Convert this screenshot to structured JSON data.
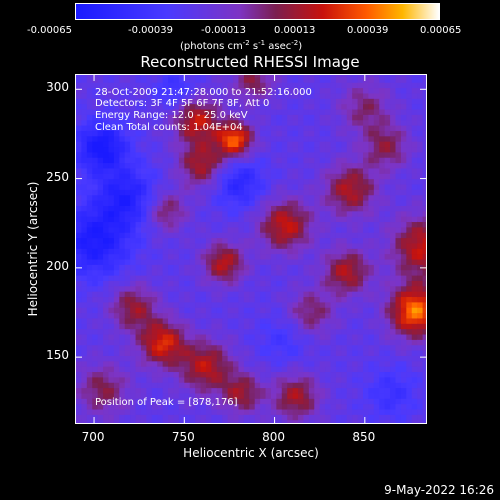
{
  "colorbar": {
    "ticks": [
      "-0.00065",
      "-0.00039",
      "-0.00013",
      "0.00013",
      "0.00039",
      "0.00065"
    ],
    "units_text": "(photons cm",
    "units_exp1": "-2",
    "units_mid": " s",
    "units_exp2": "-1",
    "units_mid2": " asec",
    "units_exp3": "-2",
    "units_end": ")"
  },
  "chart_data": {
    "type": "heatmap",
    "title": "Reconstructed RHESSI Image",
    "xlabel": "Heliocentric X (arcsec)",
    "ylabel": "Heliocentric Y (arcsec)",
    "xlim": [
      690,
      885
    ],
    "ylim": [
      112,
      308
    ],
    "xticks": [
      700,
      750,
      800,
      850
    ],
    "yticks": [
      150,
      200,
      250,
      300
    ],
    "clim": [
      -0.00065,
      0.00065
    ],
    "annotations": [
      "28-Oct-2009 21:47:28.000 to 21:52:16.000",
      "Detectors: 3F 4F 5F 6F 7F 8F, Att 0",
      "Energy Range: 12.0 - 25.0 keV",
      "Clean     Total counts: 1.04E+04"
    ],
    "peak_label": "Position of Peak = [878,176]",
    "peak": [
      878,
      176
    ],
    "hot_spots": [
      {
        "x": 878,
        "y": 176,
        "v": 0.00065,
        "r": 10
      },
      {
        "x": 882,
        "y": 212,
        "v": 0.00045,
        "r": 12
      },
      {
        "x": 738,
        "y": 158,
        "v": 0.0005,
        "r": 9
      },
      {
        "x": 762,
        "y": 145,
        "v": 0.00042,
        "r": 10
      },
      {
        "x": 778,
        "y": 272,
        "v": 0.0006,
        "r": 7
      },
      {
        "x": 760,
        "y": 258,
        "v": 0.0004,
        "r": 9
      },
      {
        "x": 757,
        "y": 283,
        "v": 0.00045,
        "r": 9
      },
      {
        "x": 806,
        "y": 224,
        "v": 0.00045,
        "r": 10
      },
      {
        "x": 772,
        "y": 203,
        "v": 0.00042,
        "r": 8
      },
      {
        "x": 840,
        "y": 198,
        "v": 0.0004,
        "r": 9
      },
      {
        "x": 842,
        "y": 244,
        "v": 0.0004,
        "r": 10
      },
      {
        "x": 722,
        "y": 178,
        "v": 0.00035,
        "r": 9
      },
      {
        "x": 705,
        "y": 132,
        "v": 0.0003,
        "r": 10
      },
      {
        "x": 862,
        "y": 268,
        "v": 0.0003,
        "r": 9
      },
      {
        "x": 812,
        "y": 128,
        "v": 0.00038,
        "r": 9
      },
      {
        "x": 782,
        "y": 130,
        "v": 0.00035,
        "r": 8
      },
      {
        "x": 850,
        "y": 290,
        "v": 0.00025,
        "r": 10
      },
      {
        "x": 820,
        "y": 175,
        "v": 0.00028,
        "r": 9
      },
      {
        "x": 740,
        "y": 232,
        "v": 0.0003,
        "r": 8
      },
      {
        "x": 788,
        "y": 305,
        "v": 0.0003,
        "r": 8
      },
      {
        "x": 700,
        "y": 215,
        "v": -0.0004,
        "r": 14
      },
      {
        "x": 704,
        "y": 268,
        "v": -0.00045,
        "r": 10
      },
      {
        "x": 718,
        "y": 240,
        "v": -0.00035,
        "r": 12
      },
      {
        "x": 780,
        "y": 248,
        "v": -0.0003,
        "r": 10
      },
      {
        "x": 865,
        "y": 130,
        "v": -0.0002,
        "r": 10
      },
      {
        "x": 805,
        "y": 160,
        "v": -0.00015,
        "r": 10
      },
      {
        "x": 745,
        "y": 300,
        "v": -0.0002,
        "r": 8
      }
    ]
  },
  "footer": {
    "timestamp": "9-May-2022 16:26"
  }
}
